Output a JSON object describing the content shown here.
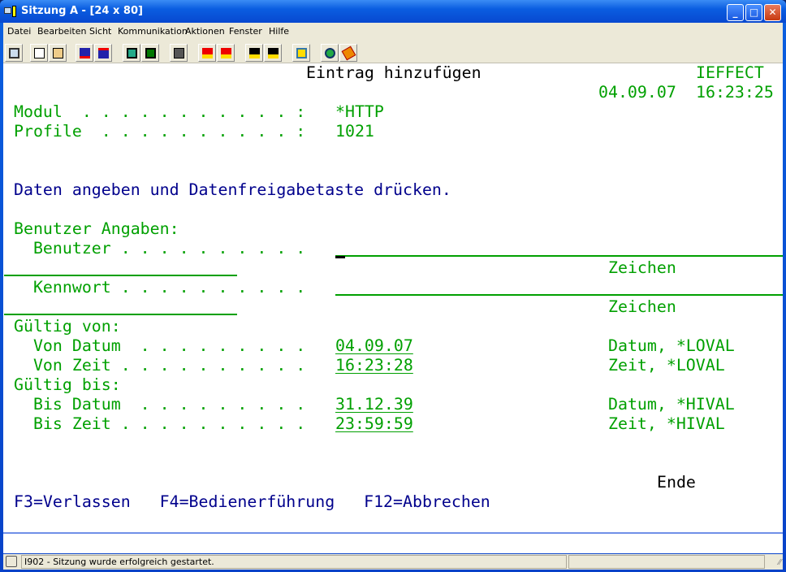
{
  "window": {
    "title": "Sitzung A - [24 x 80]"
  },
  "menu": [
    "Datei",
    "Bearbeiten",
    "Sicht",
    "Kommunikation",
    "Aktionen",
    "Fenster",
    "Hilfe"
  ],
  "toolbar_icons": [
    "display-icon",
    "copy-icon",
    "paste-icon",
    "send-icon",
    "receive-icon",
    "screen-setup-icon",
    "screen-icon",
    "keyboard-icon",
    "macro-play-icon",
    "macro-record-icon",
    "macro-run-icon",
    "macro-stop-icon",
    "clipboard-icon",
    "globe-icon",
    "help-icon"
  ],
  "screen": {
    "title": "Eintrag hinzufügen",
    "system": "IEFFECT",
    "date": "04.09.07",
    "time": "16:23:25",
    "modul_label": "Modul  . . . . . . . . . . . :",
    "modul_value": "*HTTP",
    "profile_label": "Profile  . . . . . . . . . . :",
    "profile_value": "1021",
    "instruction": "Daten angeben und Datenfreigabetaste drücken.",
    "benutzer_section": "Benutzer Angaben:",
    "benutzer_label": "  Benutzer . . . . . . . . . .",
    "benutzer_value": "",
    "benutzer_hint": "Zeichen",
    "kennwort_label": "  Kennwort . . . . . . . . . .",
    "kennwort_value": "",
    "kennwort_hint": "Zeichen",
    "gueltig_von": "Gültig von:",
    "von_datum_label": "  Von Datum  . . . . . . . . .",
    "von_datum_value": "04.09.07",
    "von_datum_hint": "Datum, *LOVAL",
    "von_zeit_label": "  Von Zeit . . . . . . . . . .",
    "von_zeit_value": "16:23:28",
    "von_zeit_hint": "Zeit, *LOVAL",
    "gueltig_bis": "Gültig bis:",
    "bis_datum_label": "  Bis Datum  . . . . . . . . .",
    "bis_datum_value": "31.12.39",
    "bis_datum_hint": "Datum, *HIVAL",
    "bis_zeit_label": "  Bis Zeit . . . . . . . . . .",
    "bis_zeit_value": "23:59:59",
    "bis_zeit_hint": "Zeit, *HIVAL",
    "more": "Ende",
    "fkeys": "F3=Verlassen   F4=Bedienerführung   F12=Abbrechen"
  },
  "statusbar": {
    "message": "I902 - Sitzung wurde erfolgreich gestartet."
  },
  "colors": {
    "field": "#00a000",
    "info": "#00008c",
    "title": "#000000"
  }
}
